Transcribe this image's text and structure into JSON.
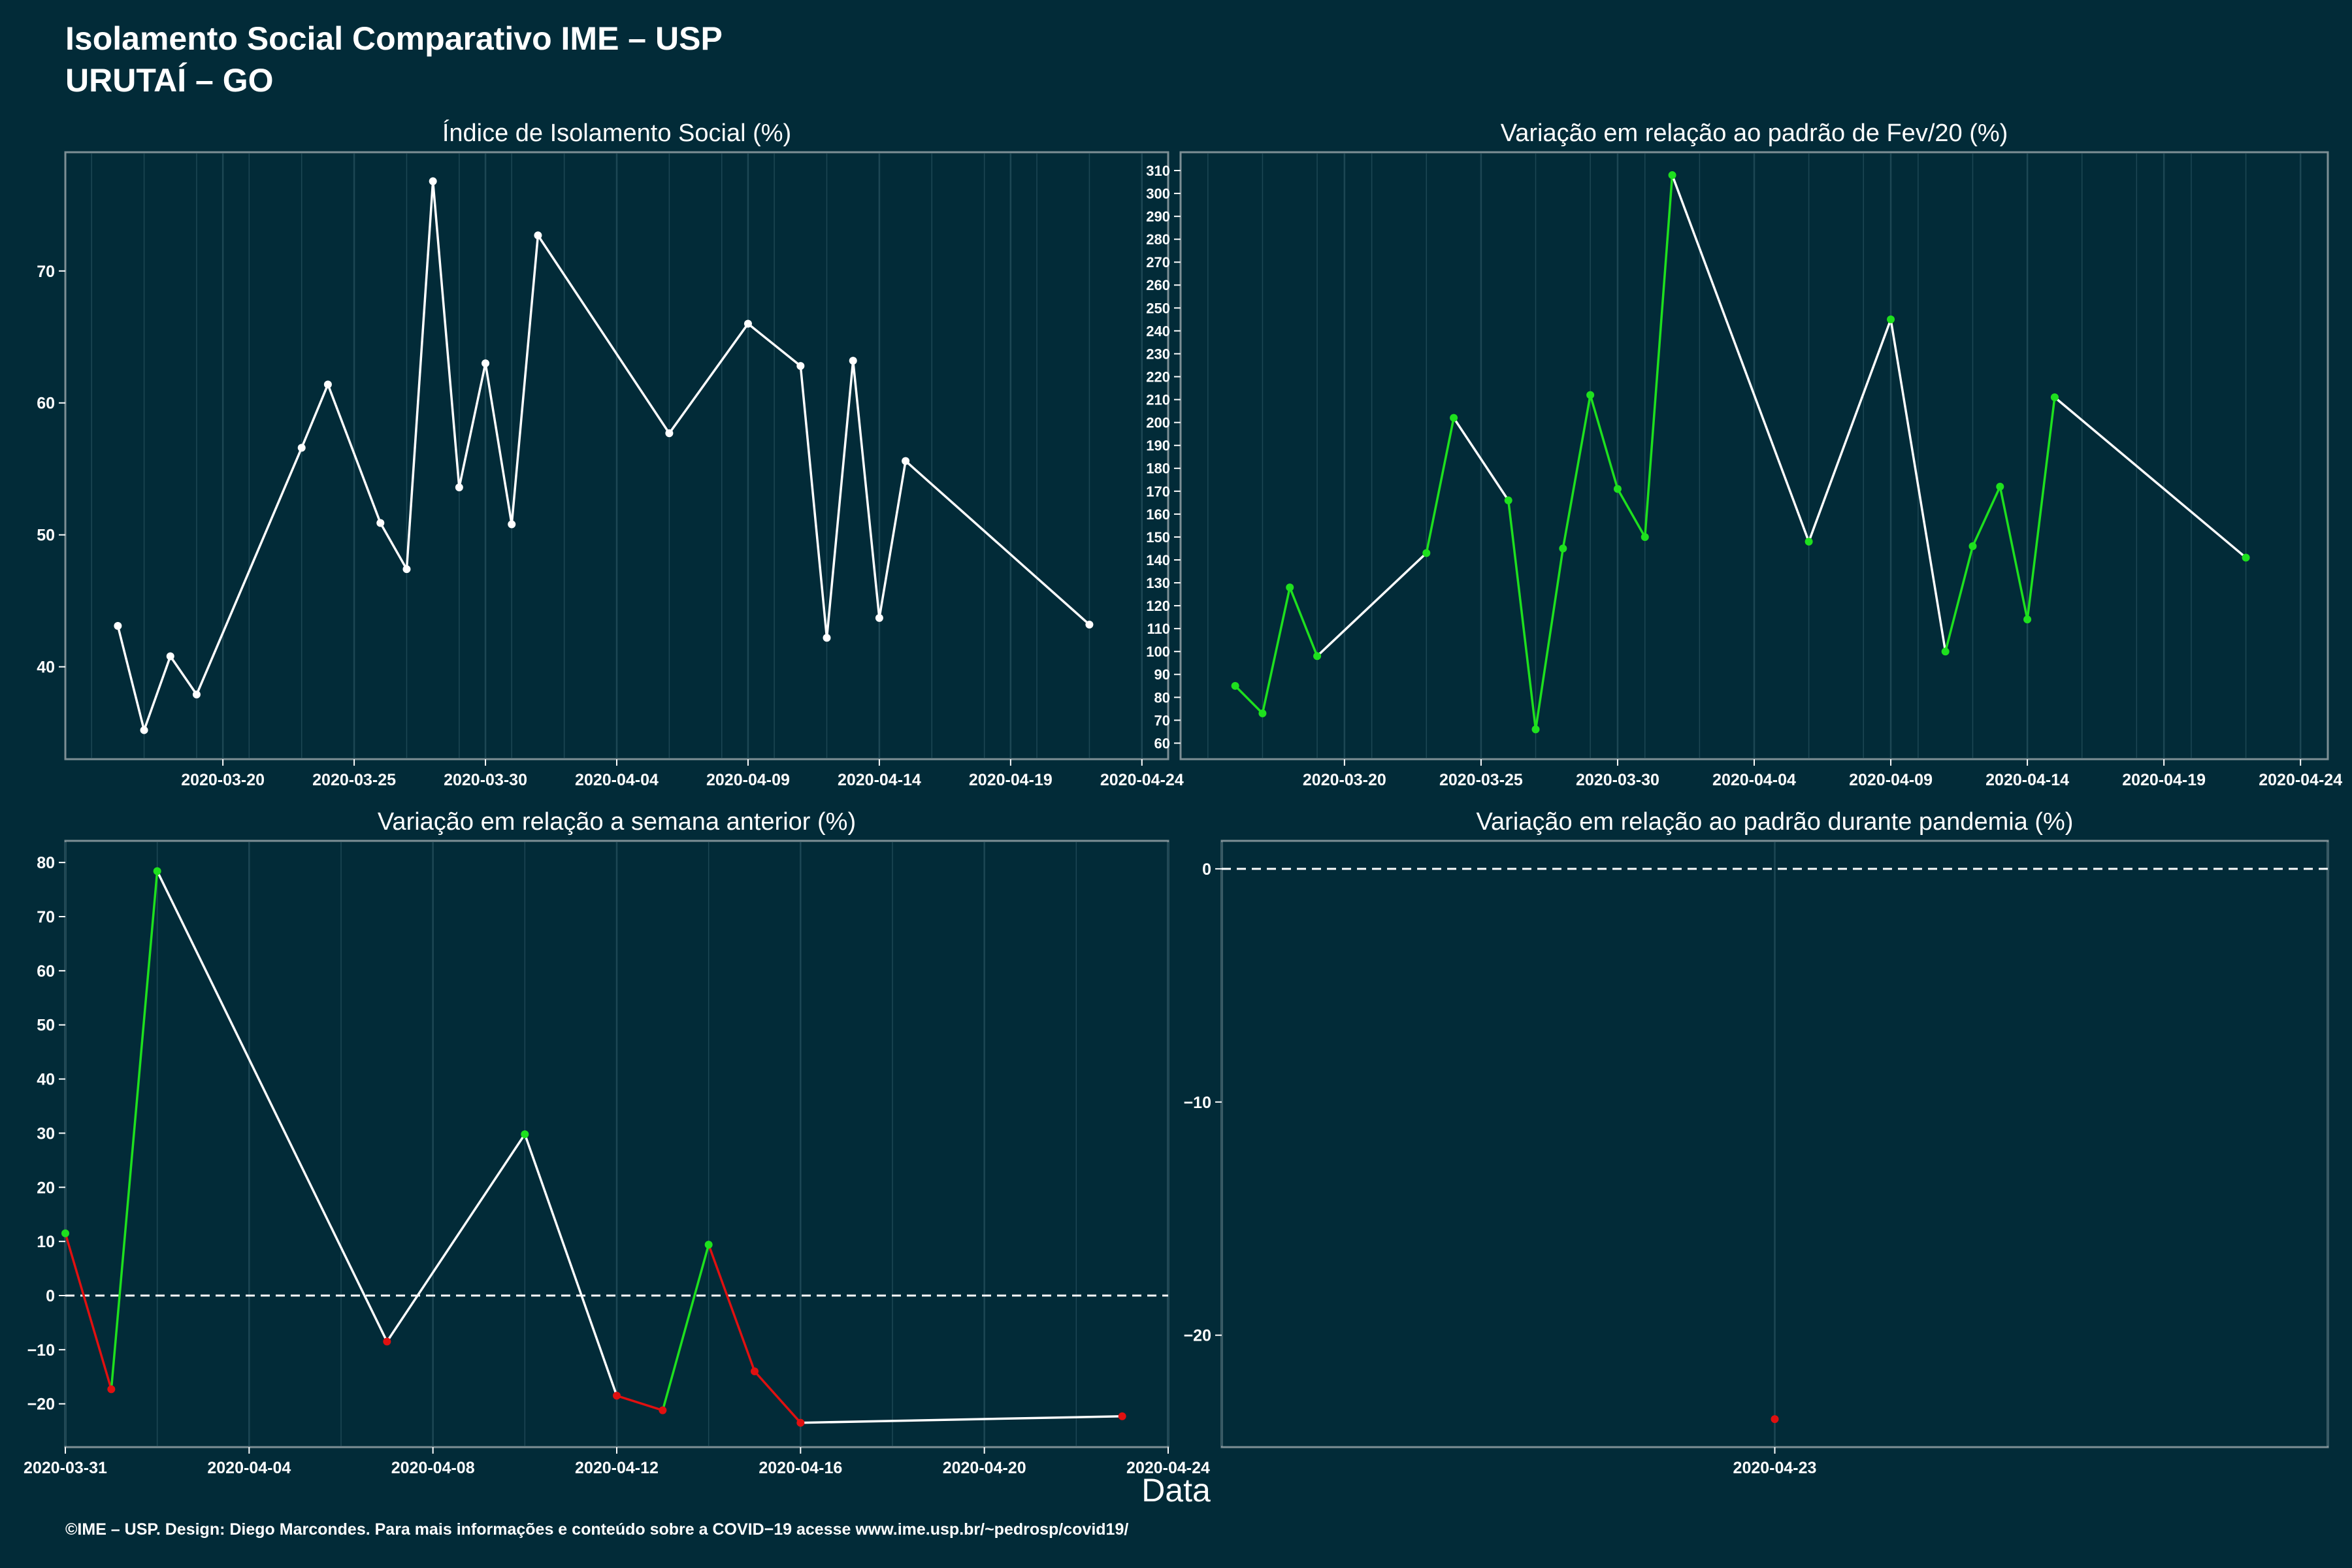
{
  "header": {
    "title": "Isolamento Social Comparativo IME – USP",
    "subtitle": "URUTAÍ – GO"
  },
  "footer": "©IME – USP. Design: Diego Marcondes. Para mais informações e conteúdo sobre a COVID−19 acesse www.ime.usp.br/~pedrosp/covid19/",
  "x_axis_title": "Data",
  "colors": {
    "background": "#022b38",
    "line": "#ffffff",
    "up": "#1ee01e",
    "down": "#e01010",
    "panel_border": "#7d8f95"
  },
  "chart_data": [
    {
      "id": "isolamento",
      "type": "line",
      "title": "Índice de Isolamento Social (%)",
      "xlim": [
        "2020-03-14",
        "2020-04-25"
      ],
      "ylim": [
        33,
        79
      ],
      "x_ticks": [
        "2020-03-20",
        "2020-03-25",
        "2020-03-30",
        "2020-04-04",
        "2020-04-09",
        "2020-04-14",
        "2020-04-19",
        "2020-04-24"
      ],
      "y_ticks": [
        40,
        50,
        60,
        70
      ],
      "color_mode": "white",
      "points": [
        {
          "x": "2020-03-16",
          "y": 43.1
        },
        {
          "x": "2020-03-17",
          "y": 35.2
        },
        {
          "x": "2020-03-18",
          "y": 40.8
        },
        {
          "x": "2020-03-19",
          "y": 37.9
        },
        {
          "x": "2020-03-23",
          "y": 56.6
        },
        {
          "x": "2020-03-24",
          "y": 61.4
        },
        {
          "x": "2020-03-26",
          "y": 50.9
        },
        {
          "x": "2020-03-27",
          "y": 47.4
        },
        {
          "x": "2020-03-28",
          "y": 76.8
        },
        {
          "x": "2020-03-29",
          "y": 53.6
        },
        {
          "x": "2020-03-30",
          "y": 63.0
        },
        {
          "x": "2020-03-31",
          "y": 50.8
        },
        {
          "x": "2020-04-01",
          "y": 72.7
        },
        {
          "x": "2020-04-06",
          "y": 57.7
        },
        {
          "x": "2020-04-09",
          "y": 66.0
        },
        {
          "x": "2020-04-11",
          "y": 62.8
        },
        {
          "x": "2020-04-12",
          "y": 42.2
        },
        {
          "x": "2020-04-13",
          "y": 63.2
        },
        {
          "x": "2020-04-14",
          "y": 43.7
        },
        {
          "x": "2020-04-15",
          "y": 55.6
        },
        {
          "x": "2020-04-22",
          "y": 43.2
        }
      ]
    },
    {
      "id": "fev20",
      "type": "line",
      "title": "Variação em relação ao padrão de Fev/20 (%)",
      "xlim": [
        "2020-03-14",
        "2020-04-25"
      ],
      "ylim": [
        53,
        318
      ],
      "x_ticks": [
        "2020-03-20",
        "2020-03-25",
        "2020-03-30",
        "2020-04-04",
        "2020-04-09",
        "2020-04-14",
        "2020-04-19",
        "2020-04-24"
      ],
      "y_ticks": [
        60,
        70,
        80,
        90,
        100,
        110,
        120,
        130,
        140,
        150,
        160,
        170,
        180,
        190,
        200,
        210,
        220,
        230,
        240,
        250,
        260,
        270,
        280,
        290,
        300,
        310
      ],
      "color_mode": "consecutive_day",
      "points": [
        {
          "x": "2020-03-16",
          "y": 85
        },
        {
          "x": "2020-03-17",
          "y": 73
        },
        {
          "x": "2020-03-18",
          "y": 128
        },
        {
          "x": "2020-03-19",
          "y": 98
        },
        {
          "x": "2020-03-23",
          "y": 143
        },
        {
          "x": "2020-03-24",
          "y": 202
        },
        {
          "x": "2020-03-26",
          "y": 166
        },
        {
          "x": "2020-03-27",
          "y": 66
        },
        {
          "x": "2020-03-28",
          "y": 145
        },
        {
          "x": "2020-03-29",
          "y": 212
        },
        {
          "x": "2020-03-30",
          "y": 171
        },
        {
          "x": "2020-03-31",
          "y": 150
        },
        {
          "x": "2020-04-01",
          "y": 308
        },
        {
          "x": "2020-04-06",
          "y": 148
        },
        {
          "x": "2020-04-09",
          "y": 245
        },
        {
          "x": "2020-04-11",
          "y": 100
        },
        {
          "x": "2020-04-12",
          "y": 146
        },
        {
          "x": "2020-04-13",
          "y": 172
        },
        {
          "x": "2020-04-14",
          "y": 114
        },
        {
          "x": "2020-04-15",
          "y": 211
        },
        {
          "x": "2020-04-22",
          "y": 141
        }
      ]
    },
    {
      "id": "semana",
      "type": "line",
      "title": "Variação em relação a semana anterior (%)",
      "xlim": [
        "2020-03-31",
        "2020-04-24"
      ],
      "ylim": [
        -28,
        84
      ],
      "x_ticks": [
        "2020-03-31",
        "2020-04-04",
        "2020-04-08",
        "2020-04-12",
        "2020-04-16",
        "2020-04-20",
        "2020-04-24"
      ],
      "y_ticks": [
        -20,
        -10,
        0,
        10,
        20,
        30,
        40,
        50,
        60,
        70,
        80
      ],
      "zero_line": true,
      "color_mode": "sign",
      "points": [
        {
          "x": "2020-03-31",
          "y": 11.5
        },
        {
          "x": "2020-04-01",
          "y": -17.3
        },
        {
          "x": "2020-04-02",
          "y": 78.4
        },
        {
          "x": "2020-04-07",
          "y": -8.5
        },
        {
          "x": "2020-04-10",
          "y": 29.8
        },
        {
          "x": "2020-04-12",
          "y": -18.5
        },
        {
          "x": "2020-04-13",
          "y": -21.2
        },
        {
          "x": "2020-04-14",
          "y": 9.4
        },
        {
          "x": "2020-04-15",
          "y": -14.0
        },
        {
          "x": "2020-04-16",
          "y": -23.5
        },
        {
          "x": "2020-04-23",
          "y": -22.3
        }
      ]
    },
    {
      "id": "pandemia",
      "type": "scatter",
      "title": "Variação em relação ao padrão durante pandemia (%)",
      "xlim": [
        "2020-04-22",
        "2020-04-24"
      ],
      "ylim": [
        -24.8,
        1.2
      ],
      "x_ticks": [
        "2020-04-23"
      ],
      "y_ticks": [
        -20,
        -10,
        0
      ],
      "zero_line": true,
      "color_mode": "sign",
      "points": [
        {
          "x": "2020-04-23",
          "y": -23.6
        }
      ]
    }
  ]
}
